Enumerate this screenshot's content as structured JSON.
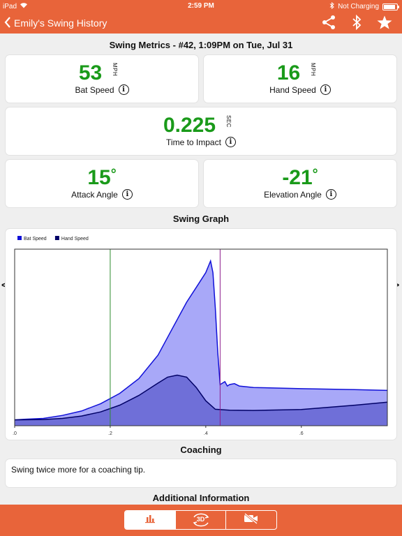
{
  "status_bar": {
    "device": "iPad",
    "time": "2:59 PM",
    "charging": "Not Charging",
    "battery_level": 0.9
  },
  "nav": {
    "back_label": "Emily's Swing History",
    "icons": [
      "share-icon",
      "bluetooth-icon",
      "star-icon"
    ]
  },
  "metrics": {
    "title": "Swing Metrics - #42, 1:09PM on Tue, Jul 31",
    "bat_speed": {
      "value": "53",
      "unit": "MPH",
      "label": "Bat Speed"
    },
    "hand_speed": {
      "value": "16",
      "unit": "MPH",
      "label": "Hand Speed"
    },
    "time_to_impact": {
      "value": "0.225",
      "unit": "SEC",
      "label": "Time to Impact"
    },
    "attack_angle": {
      "value": "15",
      "unit": "°",
      "label": "Attack Angle"
    },
    "elevation_angle": {
      "value": "-21",
      "unit": "°",
      "label": "Elevation Angle"
    }
  },
  "graph": {
    "title": "Swing Graph",
    "prev": "<",
    "next": ">"
  },
  "chart_data": {
    "type": "area",
    "series": [
      {
        "name": "Bat Speed",
        "color": "#1010d8",
        "fill": "#a8a8f8",
        "x": [
          0,
          0.02,
          0.06,
          0.1,
          0.14,
          0.18,
          0.22,
          0.26,
          0.3,
          0.33,
          0.36,
          0.38,
          0.4,
          0.41,
          0.415,
          0.42,
          0.425,
          0.43,
          0.44,
          0.445,
          0.45,
          0.46,
          0.47,
          0.5,
          0.6,
          0.7,
          0.78
        ],
        "y": [
          2,
          2.2,
          2.5,
          3.5,
          5,
          7.5,
          11,
          16,
          24,
          33,
          42,
          47,
          52,
          56,
          52,
          40,
          25,
          14,
          15,
          13.5,
          14,
          14.3,
          13.5,
          13,
          12.6,
          12.3,
          12
        ]
      },
      {
        "name": "Hand Speed",
        "color": "#000066",
        "fill": "#6f6fd8",
        "x": [
          0,
          0.06,
          0.1,
          0.14,
          0.18,
          0.22,
          0.26,
          0.3,
          0.32,
          0.34,
          0.36,
          0.38,
          0.4,
          0.42,
          0.45,
          0.5,
          0.6,
          0.7,
          0.78
        ],
        "y": [
          2,
          2.1,
          2.5,
          3.3,
          4.7,
          7,
          10.3,
          14.5,
          16.5,
          17.2,
          16.5,
          13,
          8.5,
          5.6,
          5.3,
          5.2,
          5.5,
          6.8,
          8
        ]
      }
    ],
    "markers": [
      {
        "x": 0.2,
        "color": "#2e8b2e"
      },
      {
        "x": 0.43,
        "color": "#8b1a8b"
      }
    ],
    "xlim": [
      0,
      0.78
    ],
    "ylim": [
      0,
      60
    ],
    "x_ticks": [
      ".0",
      ".2",
      ".4",
      ".6"
    ],
    "x_tick_values": [
      0,
      0.2,
      0.4,
      0.6
    ],
    "legend": "top-left",
    "grid": false
  },
  "coaching": {
    "title": "Coaching",
    "text": "Swing twice more for a coaching tip."
  },
  "additional": {
    "title": "Additional Information"
  },
  "tabs": [
    {
      "icon": "bar-chart-icon",
      "active": true
    },
    {
      "icon": "3d-rotate-icon",
      "label": "3D",
      "active": false
    },
    {
      "icon": "video-off-icon",
      "active": false
    }
  ]
}
